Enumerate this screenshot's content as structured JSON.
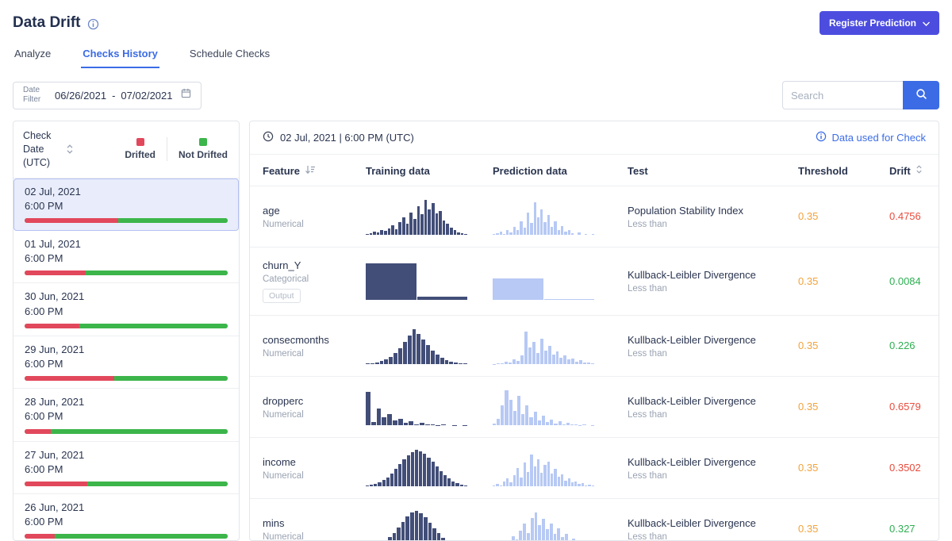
{
  "theme": {
    "accent_blue": "#3b6ce5",
    "register_purple": "#4c4ddf",
    "drifted_red": "#e2485c",
    "not_drifted_green": "#3cb54a",
    "threshold_orange": "#f2a33c",
    "drift_value_red": "#e94c3d",
    "drift_value_green": "#2eaf52",
    "training_color": "#424e78",
    "prediction_color": "#b7c9f4"
  },
  "header": {
    "title": "Data Drift",
    "register_button": "Register Prediction"
  },
  "tabs": [
    {
      "label": "Analyze",
      "active": false
    },
    {
      "label": "Checks History",
      "active": true
    },
    {
      "label": "Schedule Checks",
      "active": false
    }
  ],
  "filters": {
    "date_label": "Date Filter",
    "date_start": "06/26/2021",
    "date_separator": "-",
    "date_end": "07/02/2021",
    "search_placeholder": "Search"
  },
  "sidebar": {
    "header_label": "Check Date (UTC)",
    "legend": [
      {
        "label": "Drifted",
        "color": "#e2485c"
      },
      {
        "label": "Not Drifted",
        "color": "#3cb54a"
      }
    ],
    "checks": [
      {
        "date": "02 Jul, 2021",
        "time": "6:00 PM",
        "drifted_pct": 46,
        "selected": true
      },
      {
        "date": "01 Jul, 2021",
        "time": "6:00 PM",
        "drifted_pct": 30,
        "selected": false
      },
      {
        "date": "30 Jun, 2021",
        "time": "6:00 PM",
        "drifted_pct": 27,
        "selected": false
      },
      {
        "date": "29 Jun, 2021",
        "time": "6:00 PM",
        "drifted_pct": 44,
        "selected": false
      },
      {
        "date": "28 Jun, 2021",
        "time": "6:00 PM",
        "drifted_pct": 13,
        "selected": false
      },
      {
        "date": "27 Jun, 2021",
        "time": "6:00 PM",
        "drifted_pct": 31,
        "selected": false
      },
      {
        "date": "26 Jun, 2021",
        "time": "6:00 PM",
        "drifted_pct": 15,
        "selected": false
      }
    ]
  },
  "detail": {
    "timestamp": "02 Jul, 2021 | 6:00 PM (UTC)",
    "data_link": "Data used for Check"
  },
  "table": {
    "columns": [
      "Feature",
      "Training data",
      "Prediction data",
      "Test",
      "Threshold",
      "Drift"
    ],
    "rows": [
      {
        "feature": "age",
        "type": "Numerical",
        "badge": null,
        "test": "Population Stability Index",
        "condition": "Less than",
        "threshold": "0.35",
        "drift": "0.4756",
        "drift_status": "drifted",
        "training_hist": [
          3,
          5,
          8,
          6,
          12,
          10,
          18,
          26,
          16,
          34,
          48,
          30,
          60,
          44,
          78,
          56,
          95,
          70,
          86,
          58,
          66,
          40,
          30,
          20,
          12,
          7,
          4,
          2
        ],
        "prediction_hist": [
          2,
          4,
          8,
          3,
          12,
          6,
          22,
          12,
          38,
          20,
          60,
          32,
          90,
          48,
          70,
          34,
          55,
          22,
          38,
          14,
          24,
          8,
          12,
          4,
          0,
          6,
          0,
          3,
          0,
          2
        ]
      },
      {
        "feature": "churn_Y",
        "type": "Categorical",
        "badge": "Output",
        "test": "Kullback-Leibler Divergence",
        "condition": "Less than",
        "threshold": "0.35",
        "drift": "0.0084",
        "drift_status": "not_drifted",
        "training_hist": [
          100,
          7
        ],
        "prediction_hist": [
          58,
          2
        ]
      },
      {
        "feature": "consecmonths",
        "type": "Numerical",
        "badge": null,
        "test": "Kullback-Leibler Divergence",
        "condition": "Less than",
        "threshold": "0.35",
        "drift": "0.226",
        "drift_status": "not_drifted",
        "training_hist": [
          2,
          3,
          5,
          8,
          13,
          20,
          30,
          44,
          60,
          78,
          95,
          82,
          68,
          52,
          38,
          26,
          17,
          11,
          7,
          4,
          3,
          2
        ],
        "prediction_hist": [
          1,
          3,
          2,
          6,
          4,
          12,
          8,
          25,
          90,
          45,
          60,
          30,
          70,
          38,
          50,
          26,
          34,
          18,
          24,
          12,
          16,
          7,
          10,
          4,
          5,
          2
        ]
      },
      {
        "feature": "dropperc",
        "type": "Numerical",
        "badge": null,
        "test": "Kullback-Leibler Divergence",
        "condition": "Less than",
        "threshold": "0.35",
        "drift": "0.6579",
        "drift_status": "drifted",
        "training_hist": [
          92,
          8,
          46,
          22,
          30,
          12,
          18,
          6,
          10,
          3,
          6,
          2,
          3,
          1,
          2,
          0,
          1,
          0,
          1
        ],
        "prediction_hist": [
          4,
          18,
          55,
          95,
          70,
          40,
          80,
          30,
          55,
          22,
          38,
          14,
          26,
          9,
          16,
          5,
          10,
          3,
          6,
          2,
          3,
          1,
          2,
          0,
          1
        ]
      },
      {
        "feature": "income",
        "type": "Numerical",
        "badge": null,
        "test": "Kullback-Leibler Divergence",
        "condition": "Less than",
        "threshold": "0.35",
        "drift": "0.3502",
        "drift_status": "drifted",
        "training_hist": [
          2,
          4,
          7,
          11,
          17,
          25,
          35,
          47,
          60,
          73,
          85,
          94,
          100,
          96,
          89,
          79,
          67,
          54,
          41,
          30,
          21,
          13,
          8,
          4,
          2
        ],
        "prediction_hist": [
          2,
          6,
          3,
          12,
          22,
          10,
          30,
          50,
          25,
          65,
          40,
          88,
          55,
          75,
          38,
          58,
          68,
          35,
          48,
          26,
          32,
          16,
          22,
          10,
          14,
          6,
          8,
          3,
          4,
          2
        ]
      },
      {
        "feature": "mins",
        "type": "Numerical",
        "badge": null,
        "test": "Kullback-Leibler Divergence",
        "condition": "Less than",
        "threshold": "0.35",
        "drift": "0.327",
        "drift_status": "not_drifted",
        "training_hist": [
          1,
          3,
          6,
          11,
          18,
          28,
          40,
          54,
          70,
          84,
          95,
          100,
          93,
          82,
          68,
          53,
          39,
          27,
          17,
          10,
          5,
          2,
          1
        ],
        "prediction_hist": [
          2,
          5,
          10,
          7,
          18,
          30,
          22,
          45,
          65,
          40,
          80,
          95,
          60,
          78,
          50,
          66,
          38,
          52,
          28,
          36,
          18,
          24,
          12,
          15,
          7,
          9,
          4
        ]
      }
    ]
  }
}
